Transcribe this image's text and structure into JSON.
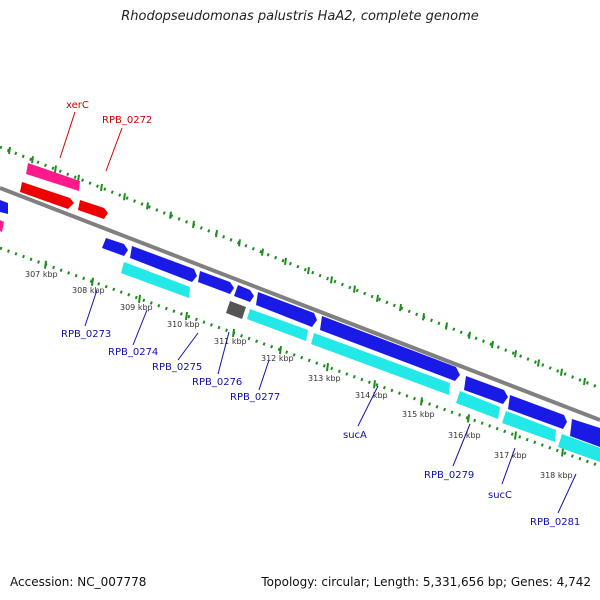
{
  "title": "Rhodopseudomonas palustris HaA2, complete genome",
  "footer": {
    "accession": "Accession: NC_007778",
    "stats": "Topology: circular; Length: 5,331,656 bp; Genes: 4,742"
  },
  "ticks": [
    "307 kbp",
    "308 kbp",
    "309 kbp",
    "310 kbp",
    "311 kbp",
    "312 kbp",
    "313 kbp",
    "314 kbp",
    "315 kbp",
    "316 kbp",
    "317 kbp",
    "318 kbp"
  ],
  "gene_labels": {
    "top": [
      "xerC",
      "RPB_0272"
    ],
    "bottom": [
      "RPB_0273",
      "RPB_0274",
      "RPB_0275",
      "RPB_0276",
      "RPB_0277",
      "sucA",
      "RPB_0279",
      "sucC",
      "RPB_0281"
    ]
  },
  "colors": {
    "backbone": "#808080",
    "cds_forward": "#1a1ae6",
    "rna_or_other": "#ff1a8c",
    "red_feature": "#ee0000",
    "cyan_feature": "#22e8e8",
    "gray_feature": "#555555",
    "dotted_track": "#1e8c1e",
    "label_top": "#cc0000",
    "label_bottom": "#1010aa"
  }
}
